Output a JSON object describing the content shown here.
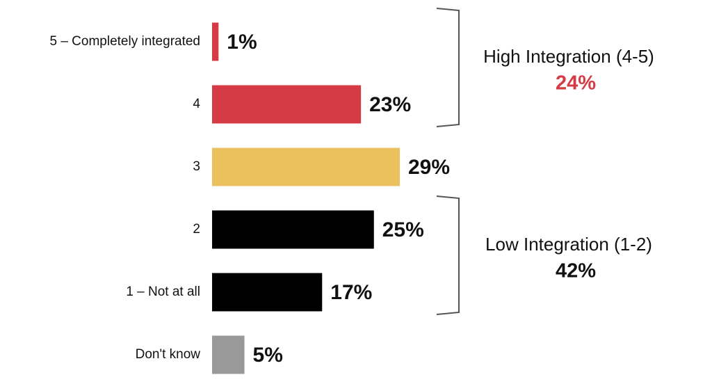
{
  "chart_data": {
    "type": "bar",
    "orientation": "horizontal",
    "categories": [
      "5 – Completely integrated",
      "4",
      "3",
      "2",
      "1 – Not at all",
      "Don't know"
    ],
    "values": [
      1,
      23,
      29,
      25,
      17,
      5
    ],
    "value_labels": [
      "1%",
      "23%",
      "29%",
      "25%",
      "17%",
      "5%"
    ],
    "colors": [
      "#d63a44",
      "#d63a44",
      "#ebc15e",
      "#000000",
      "#000000",
      "#999999"
    ],
    "groups": [
      {
        "label": "High Integration (4-5)",
        "total": "24%",
        "color": "#d63a44"
      },
      {
        "label": "Low Integration (1-2)",
        "total": "42%",
        "color": "#111111"
      }
    ]
  }
}
